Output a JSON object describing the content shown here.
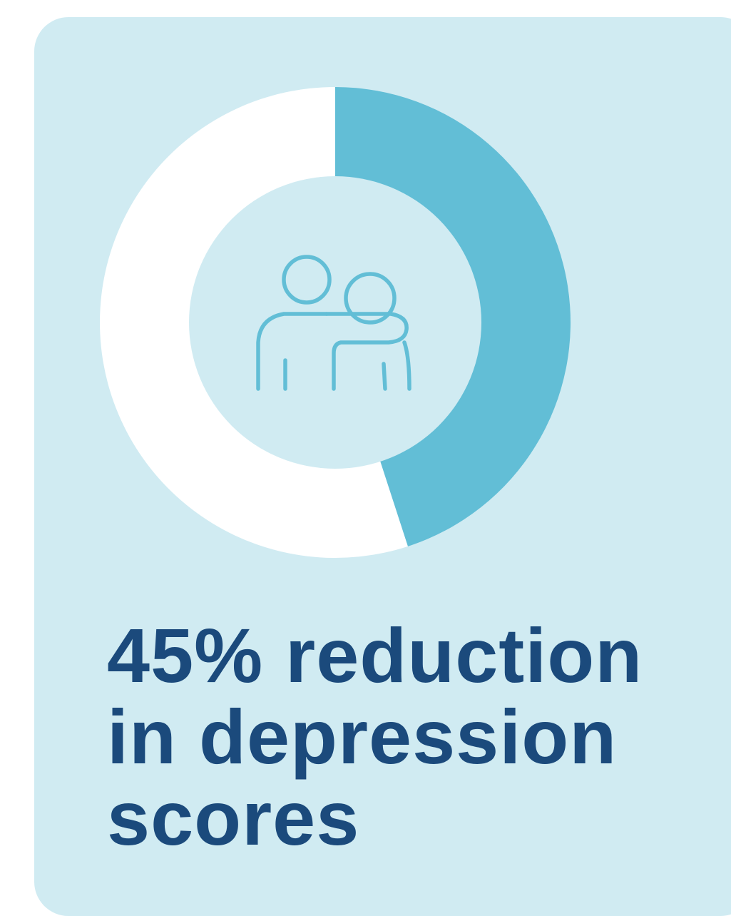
{
  "chart_data": {
    "type": "pie",
    "style": "donut",
    "values": [
      45,
      55
    ],
    "colors": [
      "#62bed6",
      "#ffffff"
    ],
    "center_icon": "people-support-icon",
    "center_color": "#d0ebf2"
  },
  "headline": {
    "line1": "45% reduction",
    "line2": "in depression",
    "line3": "scores"
  },
  "colors": {
    "card_background": "#d0ebf2",
    "accent": "#62bed6",
    "headline_text": "#1b4a7c"
  }
}
